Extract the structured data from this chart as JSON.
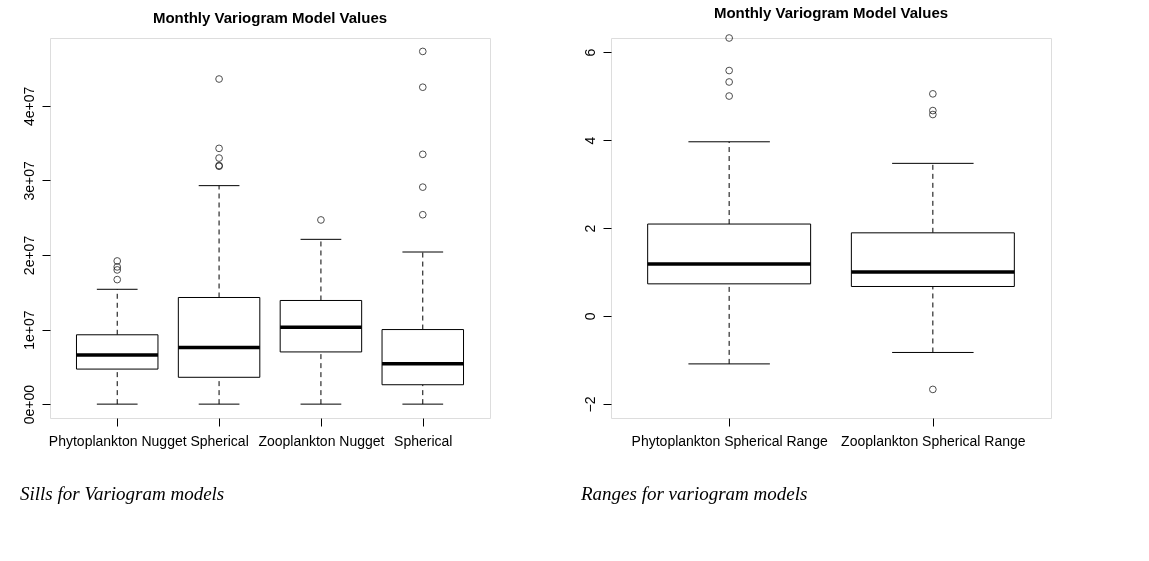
{
  "chart_data": [
    {
      "type": "box",
      "title": "Monthly Variogram Model Values",
      "categories": [
        "Phytoplankton Nugget",
        "Spherical",
        "Zooplankton Nugget",
        "Spherical"
      ],
      "boxes": [
        {
          "low": 0,
          "q1": 4700000.0,
          "median": 6600000.0,
          "q3": 9300000.0,
          "high": 15400000.0,
          "outliers": [
            19200000.0,
            18400000.0,
            18000000.0,
            16700000.0
          ]
        },
        {
          "low": 0,
          "q1": 3600000.0,
          "median": 7600000.0,
          "q3": 14300000.0,
          "high": 29300000.0,
          "outliers": [
            43600000.0,
            34300000.0,
            33000000.0,
            32000000.0,
            31900000.0
          ]
        },
        {
          "low": 0,
          "q1": 7000000.0,
          "median": 10300000.0,
          "q3": 13900000.0,
          "high": 22100000.0,
          "outliers": [
            24700000.0
          ]
        },
        {
          "low": 0,
          "q1": 2600000.0,
          "median": 5400000.0,
          "q3": 10000000.0,
          "high": 20400000.0,
          "outliers": [
            47300000.0,
            42500000.0,
            33500000.0,
            29100000.0,
            25400000.0
          ]
        }
      ],
      "ylim": [
        -1860000.0,
        49100000.0
      ],
      "yticks": [
        {
          "value": 0,
          "label": "0e+00"
        },
        {
          "value": 10000000.0,
          "label": "1e+07"
        },
        {
          "value": 20000000.0,
          "label": "2e+07"
        },
        {
          "value": 30000000.0,
          "label": "3e+07"
        },
        {
          "value": 40000000.0,
          "label": "4e+07"
        }
      ],
      "grid": false,
      "annotations": [
        "Sills for Variogram models"
      ]
    },
    {
      "type": "box",
      "title": "Monthly Variogram Model Values",
      "categories": [
        "Phytoplankton Spherical Range",
        "Zooplankton Spherical Range"
      ],
      "boxes": [
        {
          "low": -1.09,
          "q1": 0.73,
          "median": 1.18,
          "q3": 2.09,
          "high": 3.96,
          "outliers": [
            6.32,
            5.58,
            5.32,
            5.0
          ]
        },
        {
          "low": -0.83,
          "q1": 0.67,
          "median": 1.0,
          "q3": 1.89,
          "high": 3.47,
          "outliers": [
            5.05,
            4.67,
            4.58,
            -1.67
          ]
        }
      ],
      "ylim": [
        -2.32,
        6.32
      ],
      "yticks": [
        -2,
        0,
        2,
        4,
        6
      ],
      "grid": false,
      "annotations": [
        "Ranges for variogram models"
      ]
    }
  ]
}
